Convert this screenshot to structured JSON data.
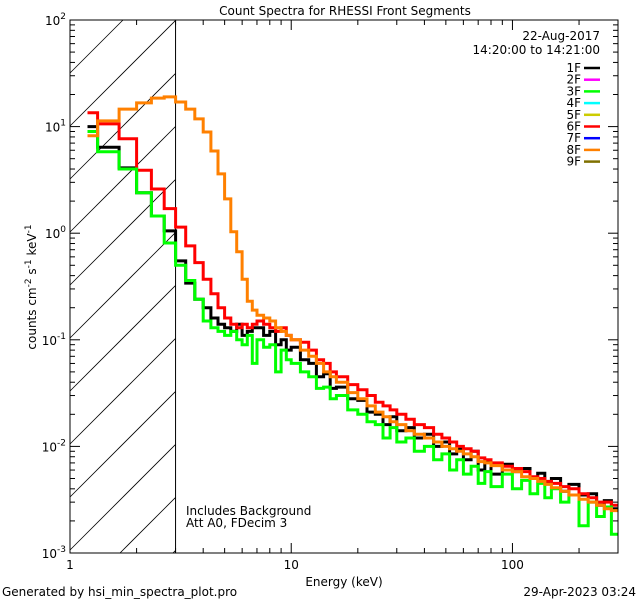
{
  "chart_data": {
    "type": "line",
    "step": true,
    "title": "Count Spectra for RHESSI Front Segments",
    "xlabel": "Energy (keV)",
    "ylabel": "counts cm-2 s-1 keV-1",
    "xscale": "log",
    "yscale": "log",
    "xlim": [
      1,
      300
    ],
    "ylim": [
      0.001,
      100
    ],
    "x_tick_labels": [
      "1",
      "10",
      "100"
    ],
    "y_tick_labels": [
      {
        "base": "10",
        "exp": "-3"
      },
      {
        "base": "10",
        "exp": "-2"
      },
      {
        "base": "10",
        "exp": "-1"
      },
      {
        "base": "10",
        "exp": "0"
      },
      {
        "base": "10",
        "exp": "1"
      },
      {
        "base": "10",
        "exp": "2"
      }
    ],
    "shaded_region_below_keV": 3,
    "date": "22-Aug-2017",
    "time_range": "14:20:00 to 14:21:00",
    "annotations": [
      "Includes Background",
      "Att A0, FDecim 3"
    ],
    "legend": [
      {
        "label": "1F",
        "color": "#000000"
      },
      {
        "label": "2F",
        "color": "#ff00ff"
      },
      {
        "label": "3F",
        "color": "#00ff00"
      },
      {
        "label": "4F",
        "color": "#00ffff"
      },
      {
        "label": "5F",
        "color": "#cccc00"
      },
      {
        "label": "6F",
        "color": "#ff0000"
      },
      {
        "label": "7F",
        "color": "#0000ff"
      },
      {
        "label": "8F",
        "color": "#ff8000"
      },
      {
        "label": "9F",
        "color": "#7f7000"
      }
    ],
    "legend_placement": "top-right",
    "bin_edges_keV": [
      1.2,
      1.333,
      1.667,
      2,
      2.333,
      2.667,
      3,
      3.333,
      3.667,
      4,
      4.333,
      4.667,
      5,
      5.333,
      5.667,
      6,
      6.333,
      6.667,
      7,
      7.5,
      8,
      8.5,
      9,
      9.5,
      10,
      11,
      12,
      13,
      14,
      15,
      16,
      18,
      20,
      22,
      24,
      26,
      28,
      30,
      33,
      36,
      40,
      44,
      48,
      52,
      56,
      60,
      65,
      70,
      75,
      80,
      90,
      100,
      110,
      120,
      130,
      140,
      150,
      165,
      180,
      200,
      220,
      240,
      260,
      280,
      300
    ],
    "series": [
      {
        "name": "1F",
        "color": "#000000",
        "values": [
          10,
          6.4,
          4.1,
          2.4,
          1.45,
          1.05,
          0.55,
          0.34,
          0.24,
          0.2,
          0.16,
          0.14,
          0.13,
          0.12,
          0.14,
          0.11,
          0.12,
          0.13,
          0.13,
          0.11,
          0.12,
          0.09,
          0.1,
          0.08,
          0.085,
          0.065,
          0.06,
          0.045,
          0.048,
          0.035,
          0.036,
          0.028,
          0.027,
          0.021,
          0.02,
          0.016,
          0.019,
          0.014,
          0.015,
          0.012,
          0.013,
          0.01,
          0.011,
          0.0085,
          0.0095,
          0.0075,
          0.009,
          0.006,
          0.0072,
          0.0055,
          0.0068,
          0.0058,
          0.0062,
          0.005,
          0.0056,
          0.0046,
          0.005,
          0.0038,
          0.0044,
          0.0035,
          0.0036,
          0.0028,
          0.0031,
          0.0026
        ]
      },
      {
        "name": "6F",
        "color": "#ff0000",
        "values": [
          13.5,
          10.6,
          7.7,
          3.9,
          2.6,
          1.7,
          1.14,
          0.76,
          0.53,
          0.37,
          0.27,
          0.2,
          0.16,
          0.14,
          0.13,
          0.14,
          0.13,
          0.14,
          0.15,
          0.14,
          0.13,
          0.12,
          0.13,
          0.11,
          0.1,
          0.095,
          0.08,
          0.065,
          0.06,
          0.05,
          0.045,
          0.038,
          0.034,
          0.03,
          0.026,
          0.024,
          0.022,
          0.02,
          0.018,
          0.016,
          0.015,
          0.013,
          0.012,
          0.011,
          0.01,
          0.0095,
          0.009,
          0.0078,
          0.0075,
          0.007,
          0.0065,
          0.0062,
          0.0058,
          0.0052,
          0.005,
          0.0047,
          0.0045,
          0.0042,
          0.004,
          0.0036,
          0.0033,
          0.003,
          0.003,
          0.0028
        ]
      },
      {
        "name": "3F",
        "color": "#00ff00",
        "values": [
          9,
          5.8,
          4.0,
          2.4,
          1.45,
          0.81,
          0.5,
          0.36,
          0.24,
          0.15,
          0.13,
          0.12,
          0.11,
          0.12,
          0.1,
          0.09,
          0.11,
          0.06,
          0.1,
          0.085,
          0.09,
          0.05,
          0.08,
          0.065,
          0.06,
          0.05,
          0.045,
          0.035,
          0.036,
          0.028,
          0.03,
          0.022,
          0.02,
          0.017,
          0.016,
          0.012,
          0.015,
          0.011,
          0.012,
          0.009,
          0.01,
          0.0075,
          0.0085,
          0.006,
          0.0075,
          0.0055,
          0.0065,
          0.0045,
          0.0058,
          0.0042,
          0.0055,
          0.004,
          0.0048,
          0.0036,
          0.0045,
          0.0033,
          0.004,
          0.003,
          0.0035,
          0.0018,
          0.003,
          0.0022,
          0.0027,
          0.0015
        ]
      },
      {
        "name": "8F",
        "color": "#ff8000",
        "values": [
          8.2,
          11.3,
          14.6,
          16.7,
          18.5,
          19,
          17,
          14.6,
          11.8,
          8.9,
          5.9,
          3.6,
          2.1,
          1.03,
          0.67,
          0.37,
          0.23,
          0.19,
          0.17,
          0.16,
          0.15,
          0.13,
          0.12,
          0.11,
          0.1,
          0.08,
          0.07,
          0.06,
          0.05,
          0.045,
          0.04,
          0.032,
          0.028,
          0.024,
          0.021,
          0.019,
          0.017,
          0.016,
          0.014,
          0.013,
          0.012,
          0.011,
          0.01,
          0.0095,
          0.009,
          0.0085,
          0.008,
          0.0072,
          0.007,
          0.0066,
          0.006,
          0.0058,
          0.0052,
          0.005,
          0.0047,
          0.0044,
          0.0041,
          0.0038,
          0.0035,
          0.0032,
          0.003,
          0.0028,
          0.0026,
          0.0025
        ]
      }
    ]
  },
  "footer": {
    "generated_by": "Generated by hsi_min_spectra_plot.pro",
    "timestamp": "29-Apr-2023 03:24"
  }
}
